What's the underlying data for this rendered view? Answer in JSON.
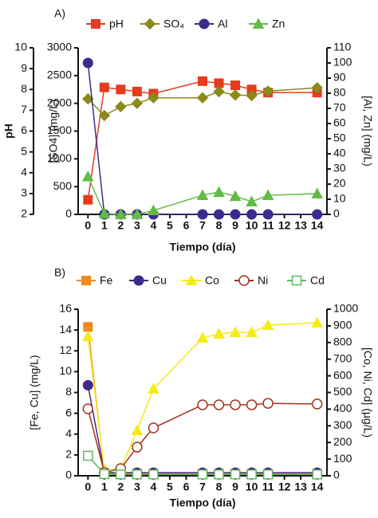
{
  "chart_data": [
    {
      "type": "line",
      "panel_label": "A)",
      "xlabel": "Tiempo (día)",
      "ylabel": "[SO4] (mg/L)",
      "y2label": "[Al, Zn] (mg/L)",
      "y3label": "pH",
      "x": [
        0,
        1,
        2,
        3,
        4,
        7,
        8,
        9,
        10,
        11,
        14
      ],
      "xlim": [
        -0.6,
        14.6
      ],
      "xticks": [
        0,
        1,
        2,
        3,
        4,
        5,
        6,
        7,
        8,
        9,
        10,
        11,
        12,
        13,
        14
      ],
      "ylim": [
        0,
        3000
      ],
      "yticks": [
        0,
        500,
        1000,
        1500,
        2000,
        2500,
        3000
      ],
      "y2lim": [
        0,
        110
      ],
      "y2ticks": [
        0,
        10,
        20,
        30,
        40,
        50,
        60,
        70,
        80,
        90,
        100,
        110
      ],
      "y3lim": [
        2,
        10
      ],
      "y3ticks": [
        2,
        3,
        4,
        5,
        6,
        7,
        8,
        9,
        10
      ],
      "series": [
        {
          "name": "pH",
          "color": "#e63b1f",
          "marker": "square",
          "axis": "y3",
          "values": [
            2.7,
            8.1,
            8.0,
            7.9,
            7.8,
            8.4,
            8.3,
            8.2,
            8.0,
            7.85,
            7.85
          ]
        },
        {
          "name": "SO₄",
          "color": "#8c8a1c",
          "marker": "diamond",
          "axis": "y",
          "values": [
            2080,
            1780,
            1940,
            2000,
            2100,
            2100,
            2210,
            2150,
            2140,
            2220,
            2280
          ]
        },
        {
          "name": "Al",
          "color": "#3e2a8c",
          "marker": "circle",
          "axis": "y2",
          "values": [
            100,
            0,
            0,
            0,
            0,
            0,
            0,
            0,
            0,
            0,
            0
          ]
        },
        {
          "name": "Zn",
          "color": "#62bb46",
          "marker": "triangle",
          "axis": "y2",
          "values": [
            25,
            0.5,
            0,
            0,
            2.6,
            12.6,
            14.7,
            12,
            8.4,
            12.6,
            13.7
          ]
        }
      ]
    },
    {
      "type": "line",
      "panel_label": "B)",
      "xlabel": "Tiempo (día)",
      "ylabel": "[Fe, Cu] (mg/L)",
      "y2label": "[Co, Ni, Cd] (µg/L)",
      "x": [
        0,
        1,
        2,
        3,
        4,
        7,
        8,
        9,
        10,
        11,
        14
      ],
      "xlim": [
        -0.6,
        14.6
      ],
      "xticks": [
        0,
        1,
        2,
        3,
        4,
        5,
        6,
        7,
        8,
        9,
        10,
        11,
        12,
        13,
        14
      ],
      "ylim": [
        0,
        16
      ],
      "yticks": [
        0,
        2,
        4,
        6,
        8,
        10,
        12,
        14,
        16
      ],
      "y2lim": [
        0,
        1000
      ],
      "y2ticks": [
        0,
        100,
        200,
        300,
        400,
        500,
        600,
        700,
        800,
        900,
        1000
      ],
      "series": [
        {
          "name": "Fe",
          "color": "#f08a1e",
          "marker": "square",
          "axis": "y",
          "values": [
            14.3,
            0.3,
            0.2,
            0.2,
            0.2,
            0.2,
            0.2,
            0.2,
            0.2,
            0.2,
            0.2
          ]
        },
        {
          "name": "Cu",
          "color": "#3e2a8c",
          "marker": "circle",
          "axis": "y",
          "values": [
            8.7,
            0.3,
            0.3,
            0.3,
            0.3,
            0.3,
            0.3,
            0.3,
            0.3,
            0.3,
            0.3
          ]
        },
        {
          "name": "Co",
          "color": "#f5ea1a",
          "marker": "triangle",
          "axis": "y2",
          "values": [
            837,
            33,
            43,
            273,
            522,
            828,
            852,
            861,
            861,
            904,
            919
          ]
        },
        {
          "name": "Ni",
          "color": "#a3321c",
          "marker": "circle",
          "open": true,
          "axis": "y2",
          "values": [
            402,
            19,
            43,
            172,
            287,
            426,
            426,
            426,
            426,
            435,
            431
          ]
        },
        {
          "name": "Cd",
          "color": "#5cb85c",
          "marker": "square",
          "open": true,
          "axis": "y2",
          "values": [
            120,
            10,
            8,
            8,
            8,
            8,
            8,
            8,
            8,
            8,
            8
          ]
        }
      ]
    }
  ]
}
